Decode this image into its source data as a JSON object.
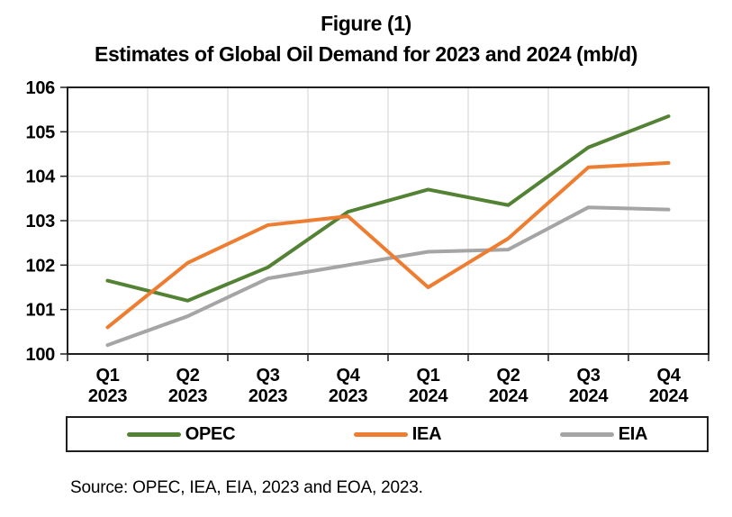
{
  "figure": {
    "title_line1": "Figure (1)",
    "title_line2": "Estimates of Global Oil Demand for 2023 and 2024 (mb/d)",
    "source_note": "Source: OPEC, IEA, EIA, 2023 and EOA, 2023."
  },
  "chart_data": {
    "type": "line",
    "title": "Figure (1) Estimates of Global Oil Demand for 2023 and 2024 (mb/d)",
    "categories": [
      "Q1 2023",
      "Q2 2023",
      "Q3 2023",
      "Q4 2023",
      "Q1 2024",
      "Q2 2024",
      "Q3 2024",
      "Q4 2024"
    ],
    "series": [
      {
        "name": "OPEC",
        "color": "#548235",
        "values": [
          101.65,
          101.2,
          101.95,
          103.2,
          103.7,
          103.35,
          104.65,
          105.35
        ]
      },
      {
        "name": "IEA",
        "color": "#ED7D31",
        "values": [
          100.6,
          102.05,
          102.9,
          103.1,
          101.5,
          102.6,
          104.2,
          104.3
        ]
      },
      {
        "name": "EIA",
        "color": "#A5A5A5",
        "values": [
          100.2,
          100.85,
          101.7,
          102.0,
          102.3,
          102.35,
          103.3,
          103.25
        ]
      }
    ],
    "xlabel": "",
    "ylabel": "",
    "ylim": [
      100,
      106
    ],
    "yticks": [
      100,
      101,
      102,
      103,
      104,
      105,
      106
    ],
    "grid": true,
    "legend_position": "bottom"
  },
  "legend": {
    "items": [
      {
        "label": "OPEC",
        "color": "#548235"
      },
      {
        "label": "IEA",
        "color": "#ED7D31"
      },
      {
        "label": "EIA",
        "color": "#A5A5A5"
      }
    ]
  },
  "colors": {
    "background": "#ffffff",
    "grid": "#d9d9d9",
    "axis": "#1f1f1f",
    "text": "#000000"
  }
}
